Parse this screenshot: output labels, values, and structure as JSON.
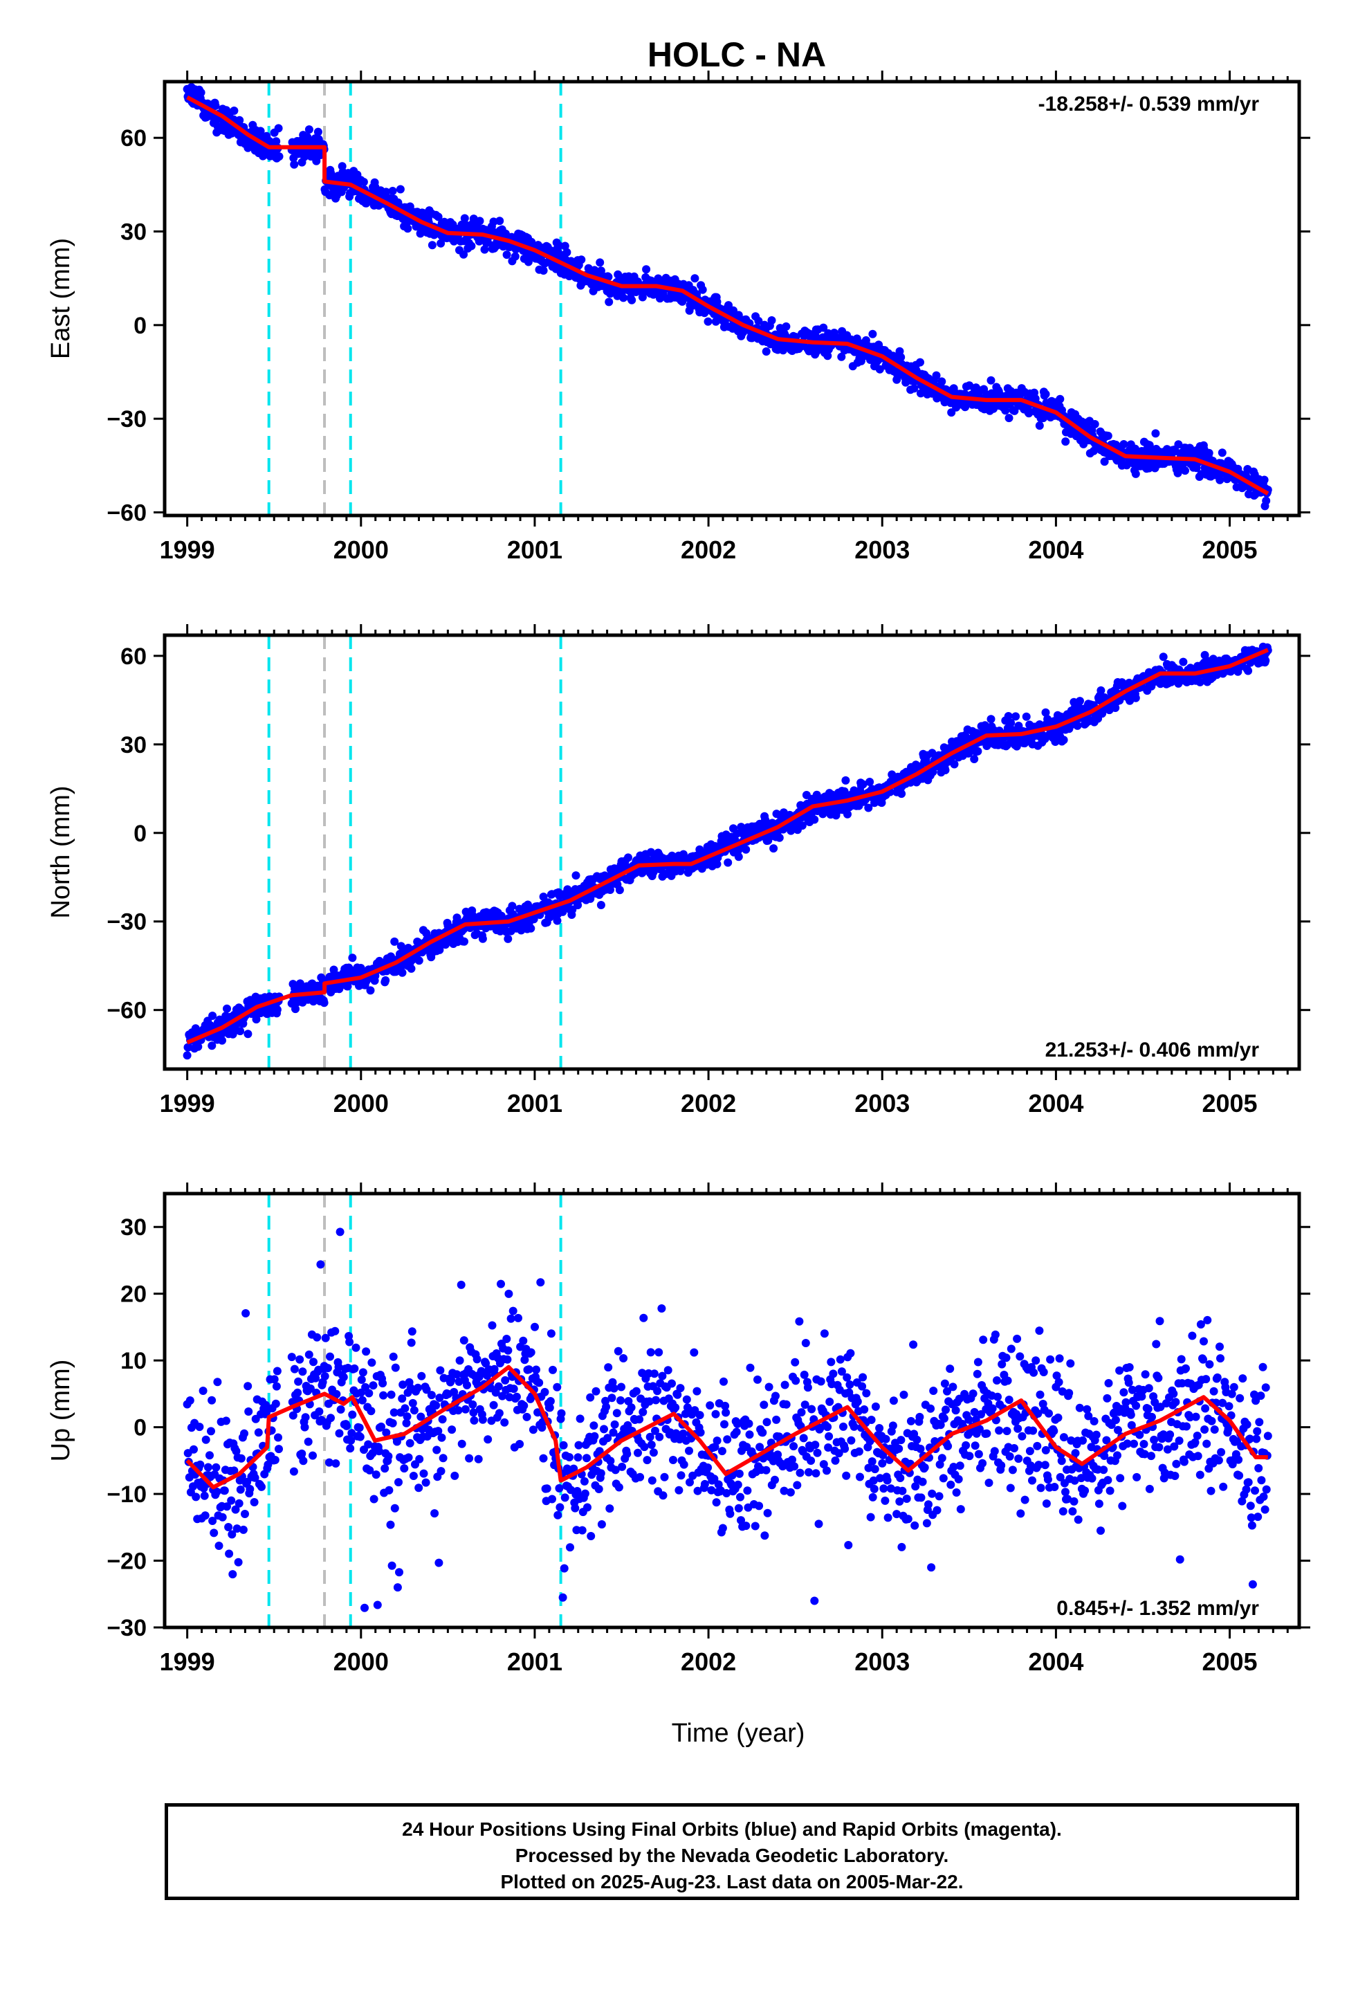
{
  "chart_data": {
    "title": "HOLC - NA",
    "type": "scatter",
    "x_axis": {
      "label": "Time (year)",
      "range": [
        1998.87,
        2005.4
      ],
      "ticks": [
        1999,
        2000,
        2001,
        2002,
        2003,
        2004,
        2005
      ],
      "tick_labels": [
        "1999",
        "2000",
        "2001",
        "2002",
        "2003",
        "2004",
        "2005"
      ]
    },
    "event_lines": [
      {
        "x": 1999.47,
        "color": "#00e5ee",
        "style": "dashed"
      },
      {
        "x": 1999.79,
        "color": "#bdbdbd",
        "style": "dashed"
      },
      {
        "x": 1999.94,
        "color": "#00e5ee",
        "style": "dashed"
      },
      {
        "x": 2001.15,
        "color": "#00e5ee",
        "style": "dashed"
      }
    ],
    "series_colors": {
      "observations": "#0000ff",
      "model": "#ff0000"
    },
    "data_gap": [
      1999.53,
      1999.6
    ],
    "panels": [
      {
        "id": "east",
        "ylabel": "East (mm)",
        "ylim": [
          -61,
          78
        ],
        "yticks": [
          -60,
          -30,
          0,
          30,
          60
        ],
        "ytick_labels": [
          "−60",
          "−30",
          "0",
          "30",
          "60"
        ],
        "rate_text": "-18.258+/- 0.539 mm/yr",
        "rate_position": "top-right",
        "scatter_std": 2.2,
        "model": [
          [
            1999.0,
            73
          ],
          [
            1999.2,
            67
          ],
          [
            1999.35,
            61
          ],
          [
            1999.47,
            57
          ],
          [
            1999.79,
            57
          ],
          [
            1999.79,
            46
          ],
          [
            1999.94,
            45
          ],
          [
            2000.15,
            39
          ],
          [
            2000.35,
            33
          ],
          [
            2000.5,
            29.5
          ],
          [
            2000.7,
            29
          ],
          [
            2000.85,
            27
          ],
          [
            2001.0,
            24
          ],
          [
            2001.15,
            20
          ],
          [
            2001.3,
            16
          ],
          [
            2001.5,
            12.5
          ],
          [
            2001.7,
            12.5
          ],
          [
            2001.85,
            11
          ],
          [
            2002.0,
            6
          ],
          [
            2002.2,
            0
          ],
          [
            2002.4,
            -4.5
          ],
          [
            2002.6,
            -5.5
          ],
          [
            2002.8,
            -6
          ],
          [
            2003.0,
            -10
          ],
          [
            2003.2,
            -17
          ],
          [
            2003.4,
            -23
          ],
          [
            2003.6,
            -24
          ],
          [
            2003.8,
            -24
          ],
          [
            2004.0,
            -28
          ],
          [
            2004.2,
            -36
          ],
          [
            2004.4,
            -42
          ],
          [
            2004.6,
            -42.5
          ],
          [
            2004.8,
            -43
          ],
          [
            2005.0,
            -47
          ],
          [
            2005.22,
            -54
          ]
        ]
      },
      {
        "id": "north",
        "ylabel": "North (mm)",
        "ylim": [
          -80,
          67
        ],
        "yticks": [
          -60,
          -30,
          0,
          30,
          60
        ],
        "ytick_labels": [
          "−60",
          "−30",
          "0",
          "30",
          "60"
        ],
        "rate_text": "21.253+/- 0.406 mm/yr",
        "rate_position": "bottom-right",
        "scatter_std": 2.2,
        "model": [
          [
            1999.0,
            -71
          ],
          [
            1999.2,
            -66
          ],
          [
            1999.4,
            -59
          ],
          [
            1999.6,
            -55
          ],
          [
            1999.79,
            -54
          ],
          [
            1999.79,
            -51
          ],
          [
            2000.0,
            -49
          ],
          [
            2000.2,
            -44
          ],
          [
            2000.4,
            -37
          ],
          [
            2000.6,
            -31
          ],
          [
            2000.85,
            -30
          ],
          [
            2001.0,
            -27
          ],
          [
            2001.2,
            -23
          ],
          [
            2001.4,
            -17
          ],
          [
            2001.6,
            -11
          ],
          [
            2001.8,
            -10.5
          ],
          [
            2001.9,
            -10.5
          ],
          [
            2002.0,
            -8
          ],
          [
            2002.2,
            -3
          ],
          [
            2002.4,
            2
          ],
          [
            2002.6,
            9
          ],
          [
            2002.8,
            11
          ],
          [
            2003.0,
            14
          ],
          [
            2003.2,
            20
          ],
          [
            2003.4,
            27
          ],
          [
            2003.6,
            33
          ],
          [
            2003.8,
            33.5
          ],
          [
            2004.0,
            36
          ],
          [
            2004.2,
            41
          ],
          [
            2004.4,
            48
          ],
          [
            2004.6,
            54
          ],
          [
            2004.8,
            54
          ],
          [
            2005.0,
            56.5
          ],
          [
            2005.22,
            62
          ]
        ]
      },
      {
        "id": "up",
        "ylabel": "Up (mm)",
        "ylim": [
          -30,
          35
        ],
        "yticks": [
          -30,
          -20,
          -10,
          0,
          10,
          20,
          30
        ],
        "ytick_labels": [
          "−30",
          "−20",
          "−10",
          "0",
          "10",
          "20",
          "30"
        ],
        "rate_text": "0.845+/- 1.352 mm/yr",
        "rate_position": "bottom-right",
        "scatter_std": 5.2,
        "model": [
          [
            1999.0,
            -5
          ],
          [
            1999.15,
            -9
          ],
          [
            1999.3,
            -7
          ],
          [
            1999.46,
            -3
          ],
          [
            1999.47,
            1.5
          ],
          [
            1999.6,
            3
          ],
          [
            1999.79,
            5
          ],
          [
            1999.9,
            3.5
          ],
          [
            1999.95,
            4.5
          ],
          [
            2000.08,
            -2
          ],
          [
            2000.25,
            -1
          ],
          [
            2000.5,
            3
          ],
          [
            2000.7,
            6
          ],
          [
            2000.85,
            9
          ],
          [
            2001.0,
            5
          ],
          [
            2001.12,
            -2
          ],
          [
            2001.15,
            -8
          ],
          [
            2001.3,
            -6
          ],
          [
            2001.5,
            -2
          ],
          [
            2001.8,
            2
          ],
          [
            2001.95,
            -2
          ],
          [
            2002.1,
            -7
          ],
          [
            2002.3,
            -4
          ],
          [
            2002.5,
            -1
          ],
          [
            2002.8,
            3
          ],
          [
            2003.0,
            -3
          ],
          [
            2003.15,
            -6.5
          ],
          [
            2003.4,
            -1
          ],
          [
            2003.6,
            1
          ],
          [
            2003.8,
            4
          ],
          [
            2004.0,
            -3
          ],
          [
            2004.15,
            -5.5
          ],
          [
            2004.4,
            -1
          ],
          [
            2004.6,
            1
          ],
          [
            2004.85,
            4.5
          ],
          [
            2005.0,
            1
          ],
          [
            2005.15,
            -4.5
          ],
          [
            2005.22,
            -4.5
          ]
        ]
      }
    ]
  },
  "footer": {
    "line1": "24 Hour Positions Using Final Orbits (blue) and Rapid Orbits (magenta).",
    "line2": "Processed by the Nevada Geodetic Laboratory.",
    "line3": "Plotted on 2025-Aug-23. Last data on 2005-Mar-22."
  }
}
